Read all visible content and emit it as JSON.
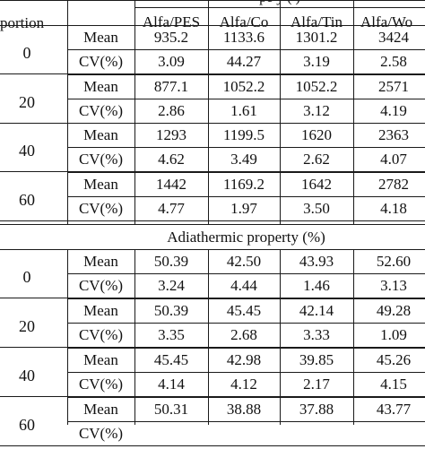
{
  "table": {
    "top_header": {
      "proportion_label": "portion",
      "group_title_partial": "pe              y (             )",
      "columns": [
        "Alfa/PES",
        "Alfa/Co",
        "Alfa/Tin",
        "Alfa/Wo"
      ]
    },
    "section1": {
      "groups": [
        {
          "proportion": "0",
          "mean_label": "Mean",
          "cv_label": "CV(%)",
          "mean": [
            "935.2",
            "1133.6",
            "1301.2",
            "3424"
          ],
          "cv": [
            "3.09",
            "44.27",
            "3.19",
            "2.58"
          ]
        },
        {
          "proportion": "20",
          "mean_label": "Mean",
          "cv_label": "CV(%)",
          "mean": [
            "877.1",
            "1052.2",
            "1052.2",
            "2571"
          ],
          "cv": [
            "2.86",
            "1.61",
            "3.12",
            "4.19"
          ]
        },
        {
          "proportion": "40",
          "mean_label": "Mean",
          "cv_label": "CV(%)",
          "mean": [
            "1293",
            "1199.5",
            "1620",
            "2363"
          ],
          "cv": [
            "4.62",
            "3.49",
            "2.62",
            "4.07"
          ]
        },
        {
          "proportion": "60",
          "mean_label": "Mean",
          "cv_label": "CV(%)",
          "mean": [
            "1442",
            "1169.2",
            "1642",
            "2782"
          ],
          "cv": [
            "4.77",
            "1.97",
            "3.50",
            "4.18"
          ]
        }
      ]
    },
    "section2_title": "Adiathermic property (%)",
    "section2": {
      "groups": [
        {
          "proportion": "0",
          "mean_label": "Mean",
          "cv_label": "CV(%)",
          "mean": [
            "50.39",
            "42.50",
            "43.93",
            "52.60"
          ],
          "cv": [
            "3.24",
            "4.44",
            "1.46",
            "3.13"
          ]
        },
        {
          "proportion": "20",
          "mean_label": "Mean",
          "cv_label": "CV(%)",
          "mean": [
            "50.39",
            "45.45",
            "42.14",
            "49.28"
          ],
          "cv": [
            "3.35",
            "2.68",
            "3.33",
            "1.09"
          ]
        },
        {
          "proportion": "40",
          "mean_label": "Mean",
          "cv_label": "CV(%)",
          "mean": [
            "45.45",
            "42.98",
            "39.85",
            "45.26"
          ],
          "cv": [
            "4.14",
            "4.12",
            "2.17",
            "4.15"
          ]
        },
        {
          "proportion": "60",
          "mean_label": "Mean",
          "cv_label": "CV(%)",
          "mean": [
            "50.31",
            "38.88",
            "37.88",
            "43.77"
          ],
          "cv": [
            "",
            "",
            "",
            ""
          ]
        }
      ]
    }
  }
}
